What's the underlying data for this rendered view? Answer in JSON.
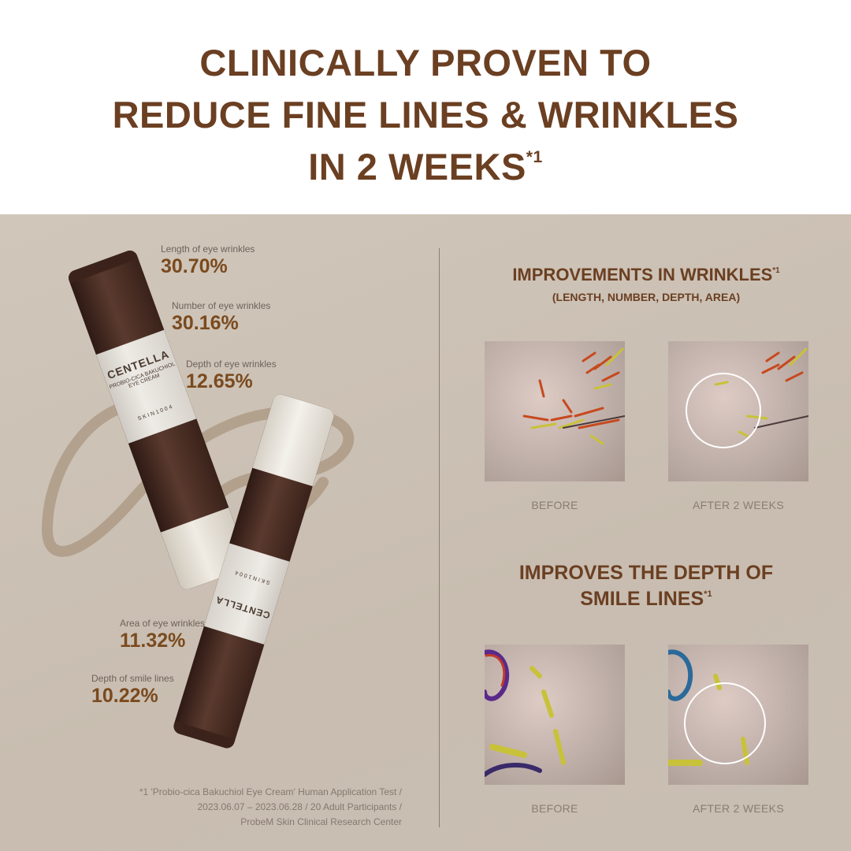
{
  "header": {
    "title_lines": [
      "CLINICALLY PROVEN TO",
      "REDUCE FINE LINES & WRINKLES",
      "IN 2 WEEKS"
    ],
    "title_sup": "*1"
  },
  "stats": [
    {
      "label": "Length of eye wrinkles",
      "value": "30.70%"
    },
    {
      "label": "Number of eye wrinkles",
      "value": "30.16%"
    },
    {
      "label": "Depth of eye wrinkles",
      "value": "12.65%"
    },
    {
      "label": "Area of eye wrinkles",
      "value": "11.32%"
    },
    {
      "label": "Depth of smile lines",
      "value": "10.22%"
    }
  ],
  "product_label": {
    "brand": "CENTELLA",
    "product": "PROBIO-CICA BAKUCHIOL EYE CREAM",
    "maker": "SKIN1004"
  },
  "wrinkles": {
    "title": "IMPROVEMENTS IN WRINKLES",
    "sup": "*1",
    "subtitle": "(LENGTH, NUMBER, DEPTH, AREA)",
    "before": "BEFORE",
    "after": "AFTER 2 WEEKS"
  },
  "smile": {
    "title_line1": "IMPROVES THE DEPTH OF",
    "title_line2": "SMILE LINES",
    "sup": "*1",
    "before": "BEFORE",
    "after": "AFTER 2 WEEKS"
  },
  "footnote": [
    "*1 'Probio-cica Bakuchiol Eye Cream' Human Application Test /",
    "2023.06.07 – 2023.06.28 / 20 Adult Participants /",
    "ProbeM Skin Clinical Research Center"
  ],
  "colors": {
    "title": "#6b3f22",
    "stat_value": "#7a4a1e",
    "panel": "#cbc0b3",
    "tube": "#4a2c22"
  }
}
